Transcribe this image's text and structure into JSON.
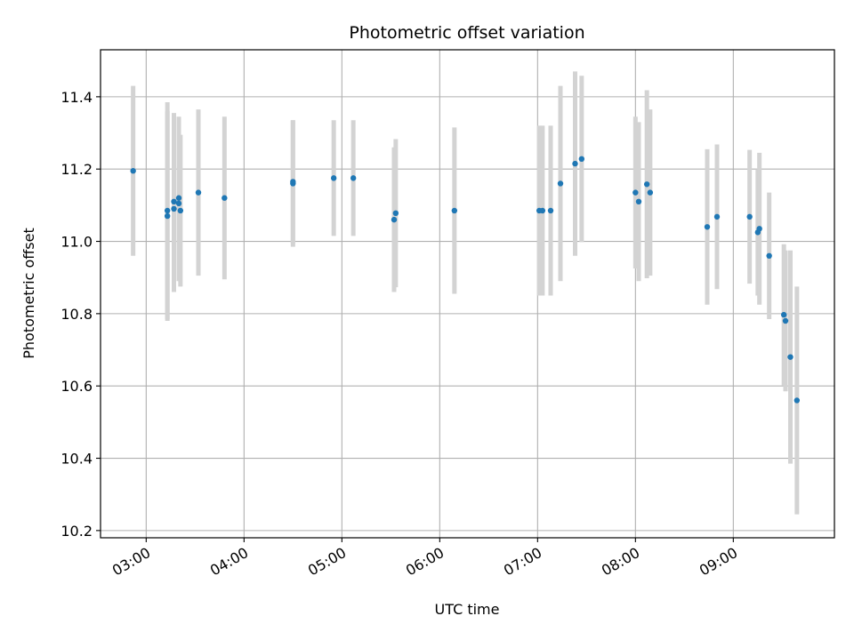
{
  "chart_data": {
    "type": "scatter",
    "title": "Photometric offset variation",
    "xlabel": "UTC time",
    "ylabel": "Photometric offset",
    "xlim": [
      "02:32",
      "10:02"
    ],
    "ylim": [
      10.18,
      11.53
    ],
    "grid": true,
    "x_ticks": [
      "03:00",
      "04:00",
      "05:00",
      "06:00",
      "07:00",
      "08:00",
      "09:00"
    ],
    "y_ticks": [
      "10.2",
      "10.4",
      "10.6",
      "10.8",
      "11.0",
      "11.2",
      "11.4"
    ],
    "colors": {
      "points": "#1f77b4",
      "errorbars": "#d3d3d3",
      "grid": "#b0b0b0"
    },
    "points": [
      {
        "time": "02:52",
        "y": 11.195,
        "yerr": 0.235
      },
      {
        "time": "03:13",
        "y": 11.085,
        "yerr": 0.3
      },
      {
        "time": "03:13",
        "y": 11.07,
        "yerr": 0.29
      },
      {
        "time": "03:17",
        "y": 11.11,
        "yerr": 0.245
      },
      {
        "time": "03:17",
        "y": 11.09,
        "yerr": 0.23
      },
      {
        "time": "03:20",
        "y": 11.12,
        "yerr": 0.225
      },
      {
        "time": "03:20",
        "y": 11.105,
        "yerr": 0.215
      },
      {
        "time": "03:21",
        "y": 11.085,
        "yerr": 0.21
      },
      {
        "time": "03:32",
        "y": 11.135,
        "yerr": 0.23
      },
      {
        "time": "03:48",
        "y": 11.12,
        "yerr": 0.225
      },
      {
        "time": "04:30",
        "y": 11.16,
        "yerr": 0.175
      },
      {
        "time": "04:30",
        "y": 11.165,
        "yerr": 0.17
      },
      {
        "time": "04:55",
        "y": 11.175,
        "yerr": 0.16
      },
      {
        "time": "05:07",
        "y": 11.175,
        "yerr": 0.16
      },
      {
        "time": "05:32",
        "y": 11.06,
        "yerr": 0.2
      },
      {
        "time": "05:33",
        "y": 11.078,
        "yerr": 0.205
      },
      {
        "time": "06:09",
        "y": 11.085,
        "yerr": 0.23
      },
      {
        "time": "07:01",
        "y": 11.085,
        "yerr": 0.235
      },
      {
        "time": "07:03",
        "y": 11.085,
        "yerr": 0.235
      },
      {
        "time": "07:08",
        "y": 11.085,
        "yerr": 0.235
      },
      {
        "time": "07:14",
        "y": 11.16,
        "yerr": 0.27
      },
      {
        "time": "07:23",
        "y": 11.215,
        "yerr": 0.255
      },
      {
        "time": "07:27",
        "y": 11.228,
        "yerr": 0.23
      },
      {
        "time": "08:00",
        "y": 11.135,
        "yerr": 0.21
      },
      {
        "time": "08:02",
        "y": 11.11,
        "yerr": 0.22
      },
      {
        "time": "08:07",
        "y": 11.158,
        "yerr": 0.26
      },
      {
        "time": "08:09",
        "y": 11.135,
        "yerr": 0.23
      },
      {
        "time": "08:44",
        "y": 11.04,
        "yerr": 0.215
      },
      {
        "time": "08:50",
        "y": 11.068,
        "yerr": 0.2
      },
      {
        "time": "09:10",
        "y": 11.068,
        "yerr": 0.185
      },
      {
        "time": "09:15",
        "y": 11.025,
        "yerr": 0.175
      },
      {
        "time": "09:16",
        "y": 11.035,
        "yerr": 0.21
      },
      {
        "time": "09:22",
        "y": 10.96,
        "yerr": 0.175
      },
      {
        "time": "09:31",
        "y": 10.797,
        "yerr": 0.195
      },
      {
        "time": "09:32",
        "y": 10.78,
        "yerr": 0.195
      },
      {
        "time": "09:35",
        "y": 10.68,
        "yerr": 0.295
      },
      {
        "time": "09:39",
        "y": 10.56,
        "yerr": 0.315
      }
    ]
  }
}
